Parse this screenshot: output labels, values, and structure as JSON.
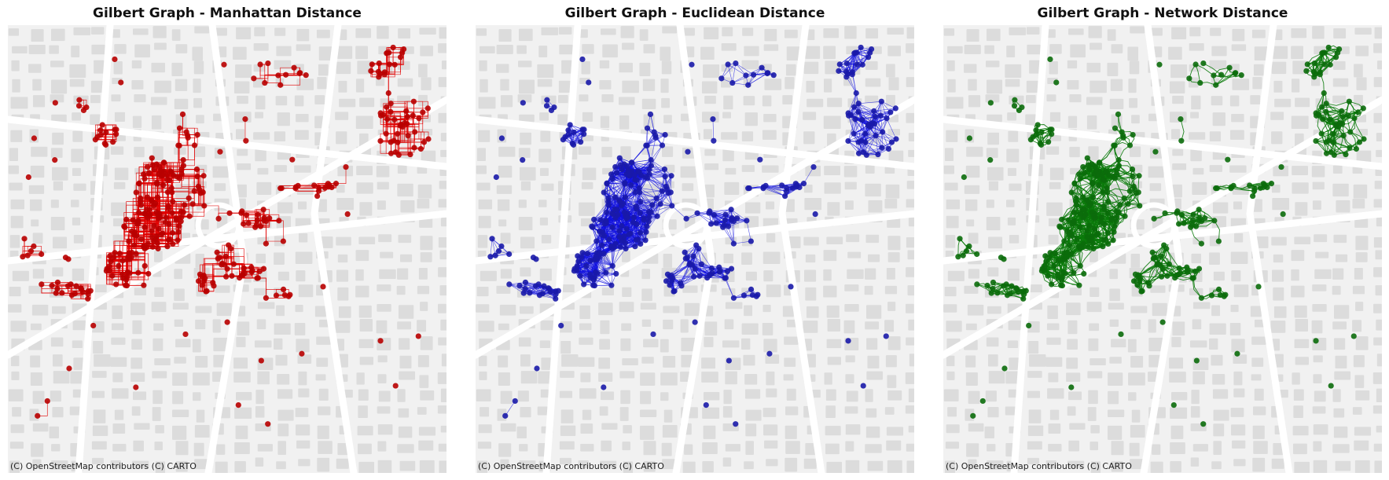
{
  "panels": [
    {
      "title": "Gilbert Graph - Manhattan Distance",
      "color": "#e00000",
      "node_color": "#b80000",
      "edge_style": "manhattan"
    },
    {
      "title": "Gilbert Graph - Euclidean Distance",
      "color": "#1010e0",
      "node_color": "#1a1aa8",
      "edge_style": "euclidean"
    },
    {
      "title": "Gilbert Graph - Network Distance",
      "color": "#0a7a0a",
      "node_color": "#0b6b0b",
      "edge_style": "network"
    }
  ],
  "attribution": "(C) OpenStreetMap contributors (C) CARTO",
  "basemap": {
    "background": "#f1f1f1",
    "block_color": "#dcdcdc",
    "road_color": "#ffffff"
  }
}
